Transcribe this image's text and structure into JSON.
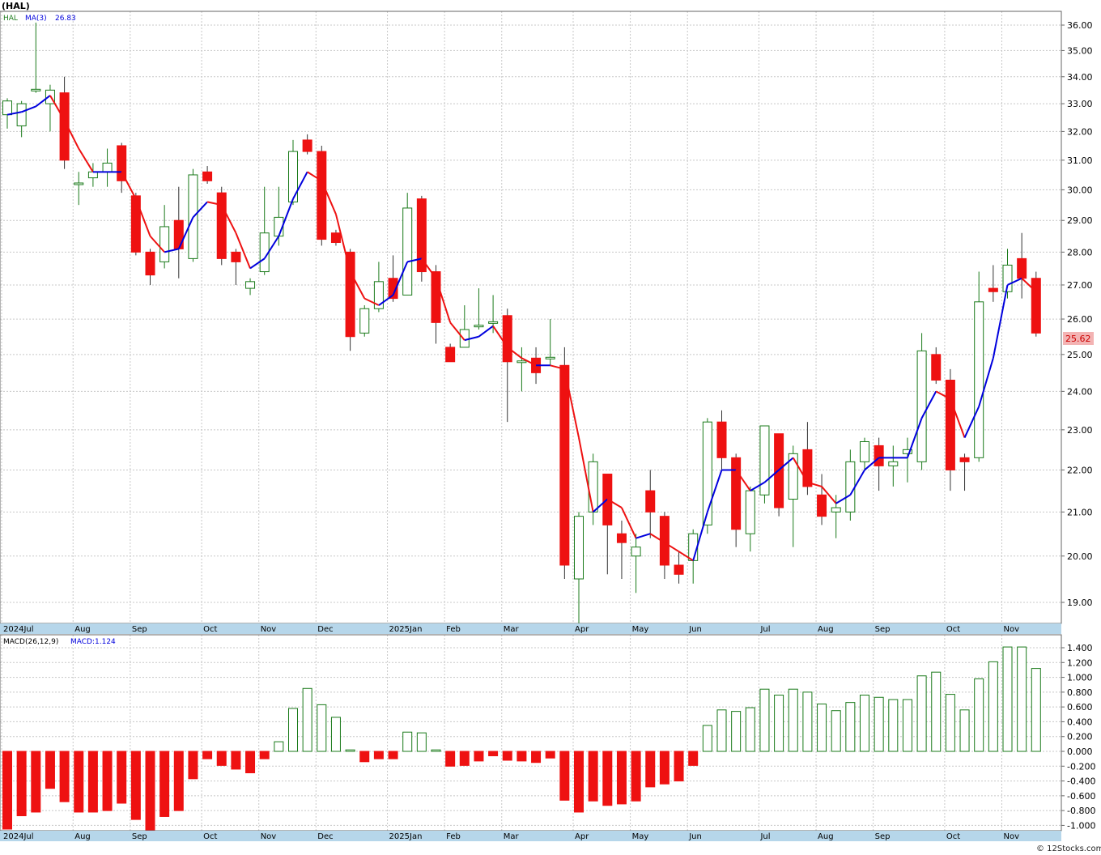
{
  "title": "(HAL)",
  "footer": "© 12Stocks.com",
  "colors": {
    "up": "#1a7a1a",
    "down": "#ee1111",
    "ma_up": "#0000dd",
    "ma_down": "#ee1111",
    "grid": "#c8c8c8",
    "axis_bar": "#b6d6ea",
    "price_tag_bg": "#f3b3b3",
    "price_tag_text": "#cc0000"
  },
  "chart_data": [
    {
      "type": "candlestick",
      "legend": {
        "symbol": "HAL",
        "ma_label": "MA(3)",
        "ma_value": "26.83"
      },
      "last_price_tag": "25.62",
      "ylim": [
        18.5,
        36.5
      ],
      "y_ticks": [
        19,
        20,
        21,
        22,
        23,
        24,
        25,
        26,
        27,
        28,
        29,
        30,
        31,
        32,
        33,
        34,
        35,
        36
      ],
      "y_tick_labels": [
        "19.00",
        "20.00",
        "21.00",
        "22.00",
        "23.00",
        "24.00",
        "25.00",
        "26.00",
        "27.00",
        "28.00",
        "29.00",
        "30.00",
        "31.00",
        "32.00",
        "33.00",
        "34.00",
        "35.00",
        "36.00"
      ],
      "months": [
        {
          "label": "2024Jul",
          "i": 0
        },
        {
          "label": "Aug",
          "i": 5
        },
        {
          "label": "Sep",
          "i": 9
        },
        {
          "label": "Oct",
          "i": 14
        },
        {
          "label": "Nov",
          "i": 18
        },
        {
          "label": "Dec",
          "i": 22
        },
        {
          "label": "2025Jan",
          "i": 27
        },
        {
          "label": "Feb",
          "i": 31
        },
        {
          "label": "Mar",
          "i": 35
        },
        {
          "label": "Apr",
          "i": 40
        },
        {
          "label": "May",
          "i": 44
        },
        {
          "label": "Jun",
          "i": 48
        },
        {
          "label": "Jul",
          "i": 53
        },
        {
          "label": "Aug",
          "i": 57
        },
        {
          "label": "Sep",
          "i": 61
        },
        {
          "label": "Oct",
          "i": 66
        },
        {
          "label": "Nov",
          "i": 70
        }
      ],
      "candles": [
        {
          "o": 32.6,
          "h": 33.2,
          "l": 32.1,
          "c": 33.1
        },
        {
          "o": 32.2,
          "h": 33.1,
          "l": 31.8,
          "c": 33.0
        },
        {
          "o": 33.5,
          "h": 36.1,
          "l": 33.4,
          "c": 33.5
        },
        {
          "o": 33.0,
          "h": 33.7,
          "l": 32.0,
          "c": 33.5
        },
        {
          "o": 33.4,
          "h": 34.0,
          "l": 30.7,
          "c": 31.0
        },
        {
          "o": 30.2,
          "h": 30.6,
          "l": 29.5,
          "c": 30.2
        },
        {
          "o": 30.4,
          "h": 30.9,
          "l": 30.1,
          "c": 30.6
        },
        {
          "o": 30.6,
          "h": 31.4,
          "l": 30.1,
          "c": 30.9
        },
        {
          "o": 31.5,
          "h": 31.6,
          "l": 29.9,
          "c": 30.3
        },
        {
          "o": 29.8,
          "h": 29.9,
          "l": 27.9,
          "c": 28.0
        },
        {
          "o": 28.0,
          "h": 28.1,
          "l": 27.0,
          "c": 27.3
        },
        {
          "o": 27.7,
          "h": 29.5,
          "l": 27.5,
          "c": 28.8
        },
        {
          "o": 29.0,
          "h": 30.1,
          "l": 27.2,
          "c": 28.1
        },
        {
          "o": 27.8,
          "h": 30.7,
          "l": 27.7,
          "c": 30.5
        },
        {
          "o": 30.6,
          "h": 30.8,
          "l": 30.2,
          "c": 30.3
        },
        {
          "o": 29.9,
          "h": 30.1,
          "l": 27.6,
          "c": 27.8
        },
        {
          "o": 28.0,
          "h": 28.1,
          "l": 27.0,
          "c": 27.7
        },
        {
          "o": 26.9,
          "h": 27.2,
          "l": 26.7,
          "c": 27.1
        },
        {
          "o": 27.4,
          "h": 30.1,
          "l": 27.3,
          "c": 28.6
        },
        {
          "o": 28.5,
          "h": 30.1,
          "l": 28.2,
          "c": 29.1
        },
        {
          "o": 29.6,
          "h": 31.7,
          "l": 29.5,
          "c": 31.3
        },
        {
          "o": 31.7,
          "h": 31.9,
          "l": 31.2,
          "c": 31.3
        },
        {
          "o": 31.3,
          "h": 31.5,
          "l": 28.2,
          "c": 28.4
        },
        {
          "o": 28.6,
          "h": 28.7,
          "l": 28.2,
          "c": 28.3
        },
        {
          "o": 28.0,
          "h": 28.1,
          "l": 25.1,
          "c": 25.5
        },
        {
          "o": 25.6,
          "h": 26.4,
          "l": 25.5,
          "c": 26.3
        },
        {
          "o": 26.3,
          "h": 27.7,
          "l": 26.2,
          "c": 27.1
        },
        {
          "o": 27.2,
          "h": 27.9,
          "l": 26.5,
          "c": 26.6
        },
        {
          "o": 26.7,
          "h": 29.9,
          "l": 26.7,
          "c": 29.4
        },
        {
          "o": 29.7,
          "h": 29.8,
          "l": 27.1,
          "c": 27.4
        },
        {
          "o": 27.4,
          "h": 27.6,
          "l": 25.3,
          "c": 25.9
        },
        {
          "o": 25.2,
          "h": 25.3,
          "l": 24.8,
          "c": 24.8
        },
        {
          "o": 25.2,
          "h": 26.4,
          "l": 25.2,
          "c": 25.7
        },
        {
          "o": 25.8,
          "h": 26.9,
          "l": 25.7,
          "c": 25.8
        },
        {
          "o": 25.9,
          "h": 26.7,
          "l": 25.6,
          "c": 25.9
        },
        {
          "o": 26.1,
          "h": 26.3,
          "l": 23.2,
          "c": 24.8
        },
        {
          "o": 24.8,
          "h": 25.2,
          "l": 24.0,
          "c": 24.8
        },
        {
          "o": 24.9,
          "h": 25.2,
          "l": 24.2,
          "c": 24.5
        },
        {
          "o": 24.9,
          "h": 26.0,
          "l": 24.7,
          "c": 24.9
        },
        {
          "o": 24.7,
          "h": 25.2,
          "l": 19.5,
          "c": 19.8
        },
        {
          "o": 19.5,
          "h": 21.0,
          "l": 18.4,
          "c": 20.9
        },
        {
          "o": 21.0,
          "h": 22.4,
          "l": 20.7,
          "c": 22.2
        },
        {
          "o": 21.9,
          "h": 21.9,
          "l": 19.6,
          "c": 20.7
        },
        {
          "o": 20.5,
          "h": 20.8,
          "l": 19.5,
          "c": 20.3
        },
        {
          "o": 20.0,
          "h": 20.5,
          "l": 19.2,
          "c": 20.2
        },
        {
          "o": 21.5,
          "h": 22.0,
          "l": 20.4,
          "c": 21.0
        },
        {
          "o": 20.9,
          "h": 21.0,
          "l": 19.5,
          "c": 19.8
        },
        {
          "o": 19.8,
          "h": 20.1,
          "l": 19.4,
          "c": 19.6
        },
        {
          "o": 19.9,
          "h": 20.6,
          "l": 19.4,
          "c": 20.5
        },
        {
          "o": 20.7,
          "h": 23.3,
          "l": 20.5,
          "c": 23.2
        },
        {
          "o": 23.2,
          "h": 23.5,
          "l": 22.0,
          "c": 22.3
        },
        {
          "o": 22.3,
          "h": 22.4,
          "l": 20.2,
          "c": 20.6
        },
        {
          "o": 20.5,
          "h": 21.6,
          "l": 20.1,
          "c": 21.5
        },
        {
          "o": 21.4,
          "h": 23.1,
          "l": 21.2,
          "c": 23.1
        },
        {
          "o": 22.9,
          "h": 22.9,
          "l": 20.9,
          "c": 21.1
        },
        {
          "o": 21.3,
          "h": 22.6,
          "l": 20.2,
          "c": 22.4
        },
        {
          "o": 22.5,
          "h": 23.2,
          "l": 21.4,
          "c": 21.6
        },
        {
          "o": 21.4,
          "h": 21.9,
          "l": 20.7,
          "c": 20.9
        },
        {
          "o": 21.0,
          "h": 21.4,
          "l": 20.4,
          "c": 21.1
        },
        {
          "o": 21.0,
          "h": 22.5,
          "l": 20.8,
          "c": 22.2
        },
        {
          "o": 22.2,
          "h": 22.8,
          "l": 22.0,
          "c": 22.7
        },
        {
          "o": 22.6,
          "h": 22.8,
          "l": 21.5,
          "c": 22.1
        },
        {
          "o": 22.1,
          "h": 22.6,
          "l": 21.6,
          "c": 22.2
        },
        {
          "o": 22.4,
          "h": 22.8,
          "l": 21.7,
          "c": 22.5
        },
        {
          "o": 22.2,
          "h": 25.6,
          "l": 22.0,
          "c": 25.1
        },
        {
          "o": 25.0,
          "h": 25.2,
          "l": 24.2,
          "c": 24.3
        },
        {
          "o": 24.3,
          "h": 24.6,
          "l": 21.5,
          "c": 22.0
        },
        {
          "o": 22.3,
          "h": 22.4,
          "l": 21.5,
          "c": 22.2
        },
        {
          "o": 22.3,
          "h": 27.4,
          "l": 22.2,
          "c": 26.5
        },
        {
          "o": 26.9,
          "h": 27.6,
          "l": 26.5,
          "c": 26.8
        },
        {
          "o": 26.8,
          "h": 28.1,
          "l": 26.6,
          "c": 27.6
        },
        {
          "o": 27.8,
          "h": 28.6,
          "l": 26.6,
          "c": 27.2
        },
        {
          "o": 27.2,
          "h": 27.4,
          "l": 25.5,
          "c": 25.6
        }
      ],
      "ma3": [
        32.6,
        32.7,
        32.9,
        33.3,
        32.4,
        31.4,
        30.6,
        30.6,
        30.6,
        29.7,
        28.5,
        28.0,
        28.1,
        29.1,
        29.6,
        29.5,
        28.6,
        27.5,
        27.8,
        28.5,
        29.7,
        30.6,
        30.3,
        29.2,
        27.4,
        26.6,
        26.4,
        26.7,
        27.7,
        27.8,
        27.2,
        25.9,
        25.4,
        25.5,
        25.8,
        25.2,
        24.9,
        24.7,
        24.7,
        24.6,
        22.8,
        21.0,
        21.3,
        21.1,
        20.4,
        20.5,
        20.3,
        20.1,
        19.9,
        21.0,
        22.0,
        22.0,
        21.5,
        21.7,
        22.0,
        22.3,
        21.7,
        21.6,
        21.2,
        21.4,
        22.0,
        22.3,
        22.3,
        22.3,
        23.3,
        24.0,
        23.8,
        22.8,
        23.6,
        24.9,
        27.0,
        27.2,
        26.8
      ]
    },
    {
      "type": "bar",
      "legend": {
        "label": "MACD(26,12,9)",
        "macd_label": "MACD:1.124"
      },
      "ylim": [
        -1.05,
        1.5
      ],
      "y_ticks": [
        -1.0,
        -0.8,
        -0.6,
        -0.4,
        -0.2,
        0.0,
        0.2,
        0.4,
        0.6,
        0.8,
        1.0,
        1.2,
        1.4
      ],
      "y_tick_labels": [
        "-1.000",
        "-0.800",
        "-0.600",
        "-0.400",
        "-0.200",
        "0.000",
        "0.200",
        "0.400",
        "0.600",
        "0.800",
        "1.000",
        "1.200",
        "1.400"
      ],
      "values": [
        -1.05,
        -0.87,
        -0.82,
        -0.5,
        -0.68,
        -0.82,
        -0.82,
        -0.8,
        -0.7,
        -0.92,
        -1.07,
        -0.88,
        -0.8,
        -0.37,
        -0.1,
        -0.19,
        -0.24,
        -0.29,
        -0.1,
        0.13,
        0.58,
        0.85,
        0.63,
        0.46,
        0.02,
        -0.14,
        -0.1,
        -0.1,
        0.26,
        0.25,
        0.02,
        -0.2,
        -0.19,
        -0.13,
        -0.06,
        -0.12,
        -0.13,
        -0.15,
        -0.09,
        -0.66,
        -0.82,
        -0.67,
        -0.73,
        -0.71,
        -0.67,
        -0.48,
        -0.44,
        -0.4,
        -0.19,
        0.35,
        0.56,
        0.54,
        0.59,
        0.84,
        0.76,
        0.84,
        0.8,
        0.64,
        0.55,
        0.66,
        0.76,
        0.73,
        0.7,
        0.7,
        1.02,
        1.07,
        0.77,
        0.56,
        0.98,
        1.21,
        1.41,
        1.41,
        1.12
      ]
    }
  ]
}
